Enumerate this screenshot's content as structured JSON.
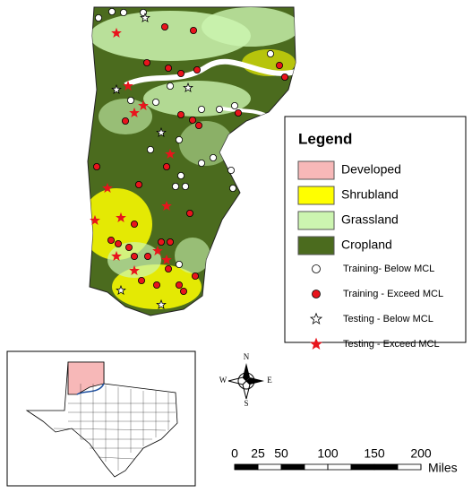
{
  "legend": {
    "title": "Legend",
    "areas": [
      {
        "label": "Developed",
        "color": "#f7b8b8"
      },
      {
        "label": "Shrubland",
        "color": "#ffff00"
      },
      {
        "label": "Grassland",
        "color": "#ccf5b0"
      },
      {
        "label": "Cropland",
        "color": "#4b6b1e"
      }
    ],
    "markers": [
      {
        "label": "Training- Below MCL",
        "shape": "circle",
        "fill": "#ffffff"
      },
      {
        "label": "Training - Exceed MCL",
        "shape": "circle",
        "fill": "#e8141c"
      },
      {
        "label": "Testing - Below MCL",
        "shape": "star",
        "fill": "#ffffff"
      },
      {
        "label": "Testing - Exceed MCL",
        "shape": "star",
        "fill": "#e8141c"
      }
    ]
  },
  "compass": {
    "n": "N",
    "s": "S",
    "e": "E",
    "w": "W"
  },
  "scale_bar": {
    "ticks": [
      0,
      25,
      50,
      100,
      150,
      200
    ],
    "unit": "Miles"
  }
}
